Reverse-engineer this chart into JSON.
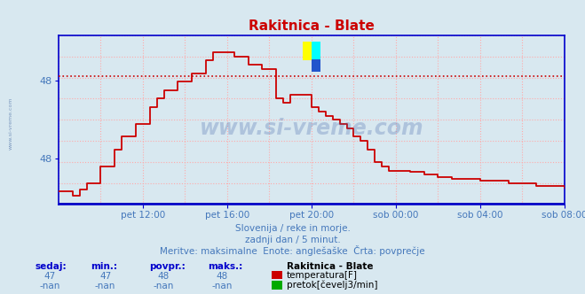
{
  "title": "Rakitnica - Blate",
  "title_color": "#cc0000",
  "bg_color": "#d8e8f0",
  "plot_bg_color": "#d8e8f0",
  "grid_color": "#ffaaaa",
  "axis_color": "#0000cc",
  "text_color": "#4477bb",
  "line_color": "#cc0000",
  "avg_line_color": "#cc0000",
  "flow_line_color": "#0000bb",
  "watermark": "www.si-vreme.com",
  "xlabel_ticks": [
    "pet 12:00",
    "pet 16:00",
    "pet 20:00",
    "sob 00:00",
    "sob 04:00",
    "sob 08:00"
  ],
  "ylim_lo": 46.4,
  "ylim_hi": 48.4,
  "xlim_lo": 0,
  "xlim_hi": 288,
  "avg_value": 47.92,
  "subtitle1": "Slovenija / reke in morje.",
  "subtitle2": "zadnji dan / 5 minut.",
  "subtitle3": "Meritve: maksimalne  Enote: anglešaške  Črta: povprečje",
  "legend_title": "Rakitnica - Blate",
  "stat_headers": [
    "sedaj:",
    "min.:",
    "povpr.:",
    "maks.:"
  ],
  "stat_temp": [
    "47",
    "47",
    "48",
    "48"
  ],
  "stat_flow": [
    "-nan",
    "-nan",
    "-nan",
    "-nan"
  ],
  "legend_temp_label": "temperatura[F]",
  "legend_flow_label": "pretok[čevelj3/min]",
  "temp_x": [
    0,
    8,
    12,
    16,
    24,
    32,
    36,
    44,
    52,
    56,
    60,
    68,
    76,
    84,
    88,
    96,
    100,
    108,
    116,
    120,
    124,
    128,
    132,
    140,
    144,
    148,
    152,
    156,
    160,
    164,
    168,
    172,
    176,
    180,
    184,
    188,
    192,
    200,
    208,
    216,
    224,
    240,
    256,
    272,
    288
  ],
  "temp_y": [
    46.55,
    46.5,
    46.58,
    46.65,
    46.85,
    47.05,
    47.2,
    47.35,
    47.55,
    47.65,
    47.75,
    47.85,
    47.95,
    48.1,
    48.2,
    48.2,
    48.15,
    48.05,
    48.0,
    48.0,
    47.65,
    47.6,
    47.7,
    47.7,
    47.55,
    47.5,
    47.45,
    47.4,
    47.35,
    47.3,
    47.2,
    47.15,
    47.05,
    46.9,
    46.85,
    46.8,
    46.8,
    46.78,
    46.75,
    46.72,
    46.7,
    46.68,
    46.65,
    46.62,
    46.6
  ]
}
